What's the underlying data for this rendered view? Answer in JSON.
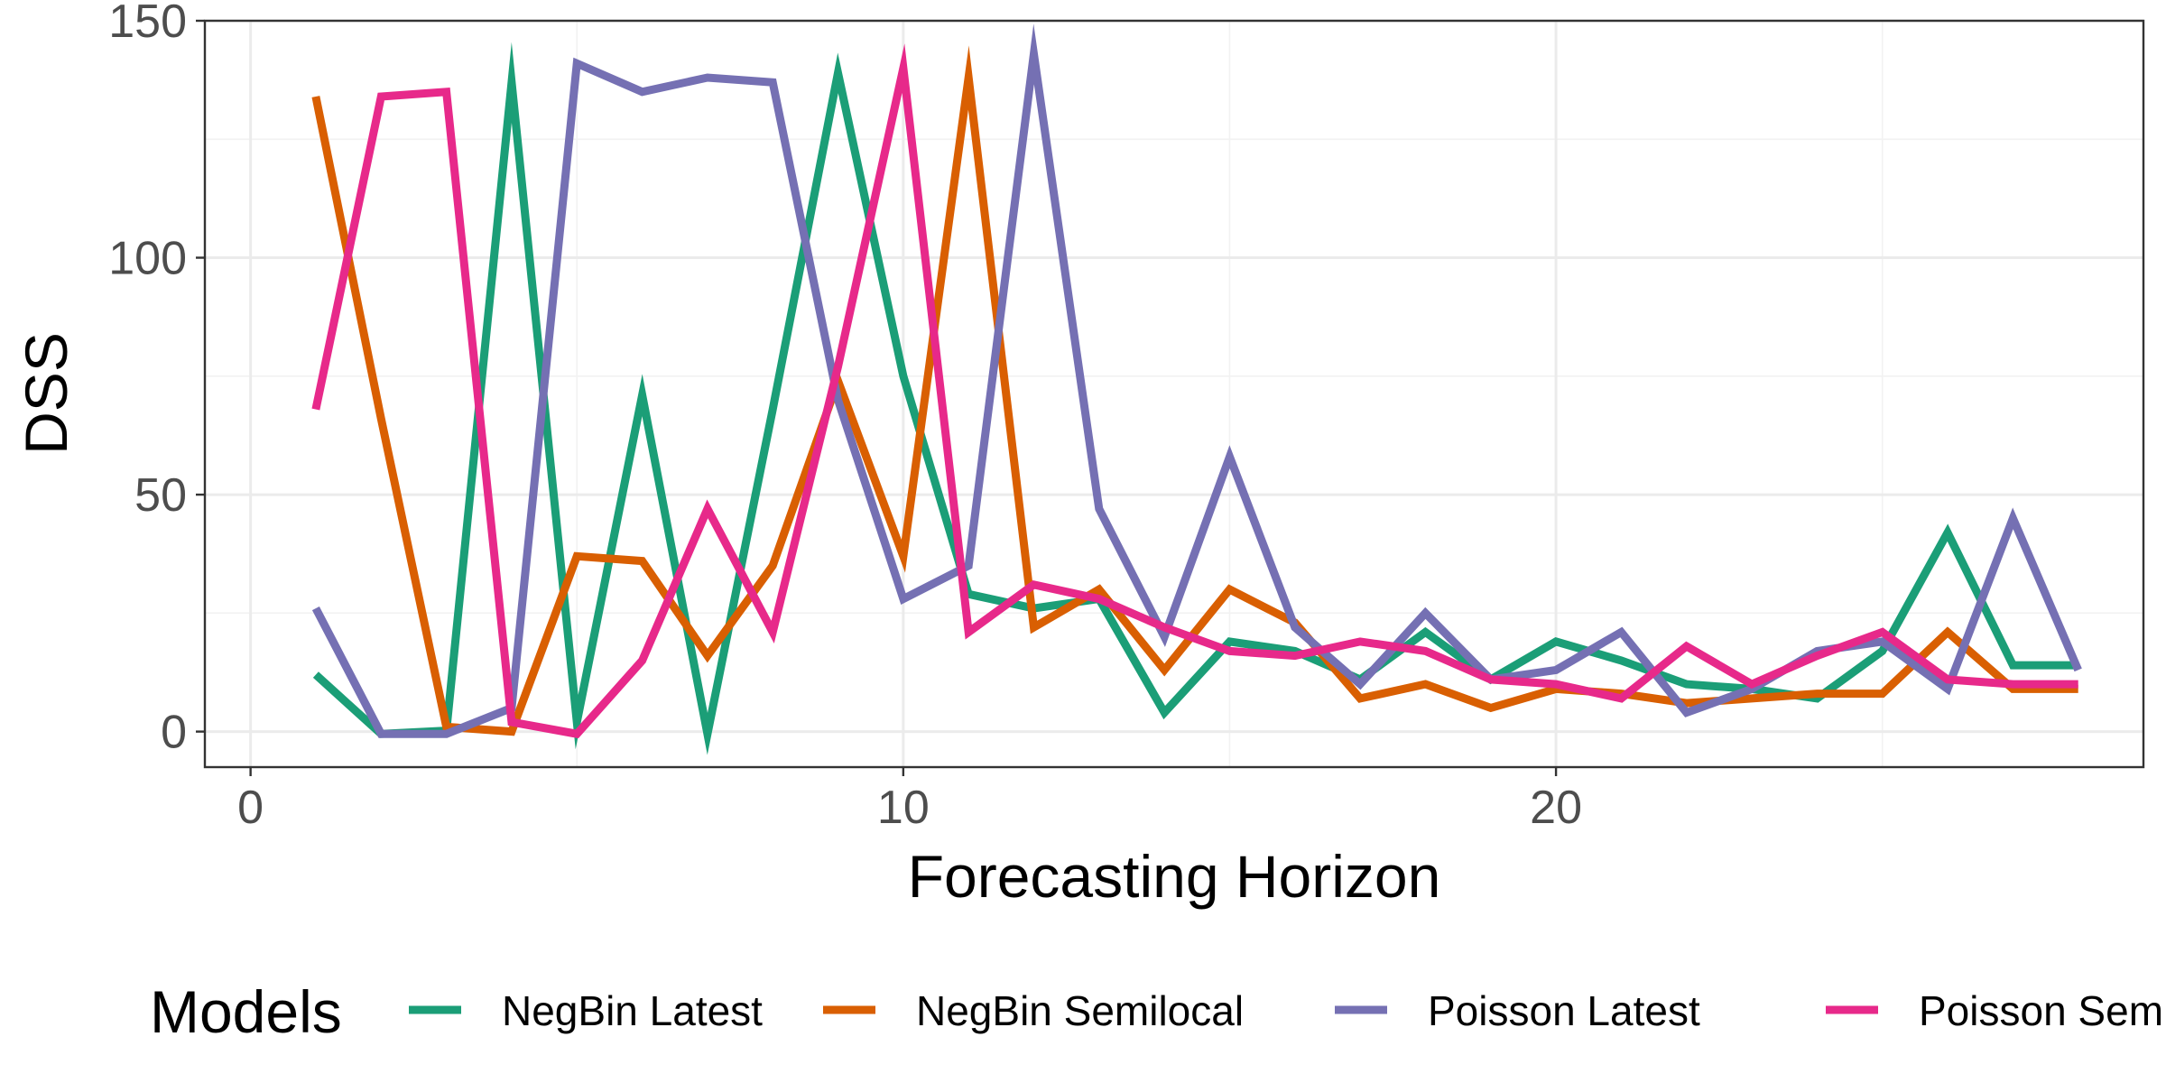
{
  "chart_data": {
    "type": "line",
    "xlabel": "Forecasting Horizon",
    "ylabel": "DSS",
    "xlim": [
      -0.7,
      29
    ],
    "ylim": [
      -7.5,
      150
    ],
    "x_ticks": [
      0,
      10,
      20
    ],
    "y_ticks": [
      0,
      50,
      100,
      150
    ],
    "grid": true,
    "legend": {
      "title": "Models",
      "position": "bottom"
    },
    "x": [
      1,
      2,
      3,
      4,
      5,
      6,
      7,
      8,
      9,
      10,
      11,
      12,
      13,
      14,
      15,
      16,
      17,
      18,
      19,
      20,
      21,
      22,
      23,
      24,
      25,
      26,
      27,
      28
    ],
    "series": [
      {
        "name": "NegBin Latest",
        "color": "#1b9e77",
        "values": [
          12,
          -0.5,
          0.2,
          137,
          2,
          71,
          -0.5,
          68,
          139,
          75,
          29,
          26,
          28,
          4,
          19,
          17,
          11,
          21,
          11,
          19,
          15,
          10,
          9,
          7,
          17,
          42,
          14,
          14
        ]
      },
      {
        "name": "NegBin Semilocal",
        "color": "#d95f02",
        "values": [
          134,
          66,
          1,
          0,
          37,
          36,
          16,
          35,
          74,
          37,
          138,
          22,
          30,
          13,
          30,
          23,
          7,
          10,
          5,
          9,
          8,
          6,
          7,
          8,
          8,
          21,
          9,
          9
        ]
      },
      {
        "name": "Poisson Latest",
        "color": "#7570b3",
        "values": [
          26,
          -0.5,
          -0.5,
          5,
          141,
          135,
          138,
          137,
          70,
          28,
          35,
          143,
          47,
          20,
          58,
          22,
          10,
          25,
          11,
          13,
          21,
          4,
          9,
          17,
          19,
          9,
          45,
          13
        ]
      },
      {
        "name": "Poisson Semilocal",
        "color": "#e7298a",
        "values": [
          68,
          134,
          135,
          2,
          -0.5,
          15,
          47,
          21,
          77,
          140,
          21,
          31,
          28,
          22,
          17,
          16,
          19,
          17,
          11,
          10,
          7,
          18,
          10,
          16,
          21,
          11,
          10,
          10
        ]
      }
    ]
  }
}
